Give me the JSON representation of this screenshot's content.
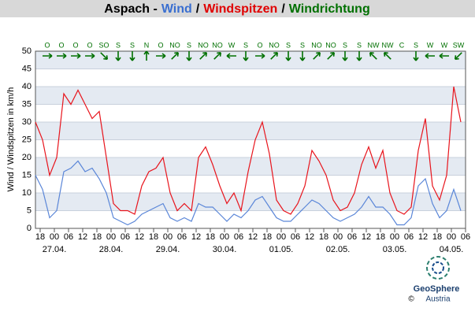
{
  "chart_data": {
    "type": "line",
    "title_parts": [
      {
        "text": "Aspach -",
        "color": "#000000"
      },
      {
        "text": "Wind",
        "color": "#3a6fd0"
      },
      {
        "text": "/",
        "color": "#000000"
      },
      {
        "text": "Windspitzen",
        "color": "#e00000"
      },
      {
        "text": "/",
        "color": "#000000"
      },
      {
        "text": "Windrichtung",
        "color": "#007000"
      }
    ],
    "ylabel": "Wind / Windspitzen in km/h",
    "x": [
      -8,
      -5,
      -2,
      1,
      4,
      7,
      10,
      13,
      16,
      19,
      22,
      25,
      28,
      31,
      34,
      37,
      40,
      43,
      46,
      49,
      52,
      55,
      58,
      61,
      64,
      67,
      70,
      73,
      76,
      79,
      82,
      85,
      88,
      91,
      94,
      97,
      100,
      103,
      106,
      109,
      112,
      115,
      118,
      121,
      124,
      127,
      130,
      133,
      136,
      139,
      142,
      145,
      148,
      151,
      154,
      157,
      160,
      163,
      166,
      169,
      172
    ],
    "series": [
      {
        "name": "Windspitzen",
        "color": "#e8141c",
        "values": [
          30,
          25,
          15,
          20,
          38,
          35,
          39,
          35,
          31,
          33,
          20,
          7,
          5,
          5,
          4,
          12,
          16,
          17,
          20,
          10,
          5,
          7,
          5,
          20,
          23,
          18,
          12,
          7,
          10,
          5,
          16,
          25,
          30,
          21,
          8,
          5,
          4,
          7,
          12,
          22,
          19,
          15,
          8,
          5,
          6,
          10,
          18,
          23,
          17,
          22,
          10,
          5,
          4,
          6,
          22,
          31,
          12,
          8,
          15,
          40,
          30
        ]
      },
      {
        "name": "Wind",
        "color": "#5a86d8",
        "values": [
          15,
          11,
          3,
          5,
          16,
          17,
          19,
          16,
          17,
          14,
          10,
          3,
          2,
          1,
          2,
          4,
          5,
          6,
          7,
          3,
          2,
          3,
          2,
          7,
          6,
          6,
          4,
          2,
          4,
          3,
          5,
          8,
          9,
          6,
          3,
          2,
          2,
          4,
          6,
          8,
          7,
          5,
          3,
          2,
          3,
          4,
          6,
          9,
          6,
          6,
          4,
          1,
          1,
          3,
          12,
          14,
          7,
          3,
          5,
          11,
          5
        ]
      }
    ],
    "xlim": [
      -8,
      174
    ],
    "xticks": [
      {
        "value": -6,
        "label": "18"
      },
      {
        "value": 0,
        "label": "00"
      },
      {
        "value": 6,
        "label": "06"
      },
      {
        "value": 12,
        "label": "12"
      },
      {
        "value": 18,
        "label": "18"
      },
      {
        "value": 24,
        "label": "00"
      },
      {
        "value": 30,
        "label": "06"
      },
      {
        "value": 36,
        "label": "12"
      },
      {
        "value": 42,
        "label": "18"
      },
      {
        "value": 48,
        "label": "00"
      },
      {
        "value": 54,
        "label": "06"
      },
      {
        "value": 60,
        "label": "12"
      },
      {
        "value": 66,
        "label": "18"
      },
      {
        "value": 72,
        "label": "00"
      },
      {
        "value": 78,
        "label": "06"
      },
      {
        "value": 84,
        "label": "12"
      },
      {
        "value": 90,
        "label": "18"
      },
      {
        "value": 96,
        "label": "00"
      },
      {
        "value": 102,
        "label": "06"
      },
      {
        "value": 108,
        "label": "12"
      },
      {
        "value": 114,
        "label": "18"
      },
      {
        "value": 120,
        "label": "00"
      },
      {
        "value": 126,
        "label": "06"
      },
      {
        "value": 132,
        "label": "12"
      },
      {
        "value": 138,
        "label": "18"
      },
      {
        "value": 144,
        "label": "00"
      },
      {
        "value": 150,
        "label": "06"
      },
      {
        "value": 156,
        "label": "12"
      },
      {
        "value": 162,
        "label": "18"
      },
      {
        "value": 168,
        "label": "00"
      },
      {
        "value": 174,
        "label": "06"
      }
    ],
    "date_labels": [
      {
        "value": 0,
        "label": "27.04."
      },
      {
        "value": 24,
        "label": "28.04."
      },
      {
        "value": 48,
        "label": "29.04."
      },
      {
        "value": 72,
        "label": "30.04."
      },
      {
        "value": 96,
        "label": "01.05."
      },
      {
        "value": 120,
        "label": "02.05."
      },
      {
        "value": 144,
        "label": "03.05."
      },
      {
        "value": 168,
        "label": "04.05."
      }
    ],
    "ylim": [
      0,
      50
    ],
    "yticks": [
      0,
      5,
      10,
      15,
      20,
      25,
      30,
      35,
      40,
      45,
      50
    ],
    "banded": true,
    "wind_direction": {
      "x": [
        -3,
        3,
        9,
        15,
        21,
        27,
        33,
        39,
        45,
        51,
        57,
        63,
        69,
        75,
        81,
        87,
        93,
        99,
        105,
        111,
        117,
        123,
        129,
        135,
        141,
        147,
        153,
        159,
        165,
        171
      ],
      "labels": [
        "O",
        "O",
        "O",
        "O",
        "SO",
        "S",
        "S",
        "N",
        "O",
        "NO",
        "S",
        "NO",
        "NO",
        "W",
        "S",
        "O",
        "NO",
        "S",
        "S",
        "NO",
        "NO",
        "S",
        "S",
        "NW",
        "NW",
        "C",
        "S",
        "W",
        "W",
        "SW"
      ]
    },
    "logo": {
      "name": "GeoSphere",
      "sub": "Austria",
      "copyright": "©"
    }
  }
}
